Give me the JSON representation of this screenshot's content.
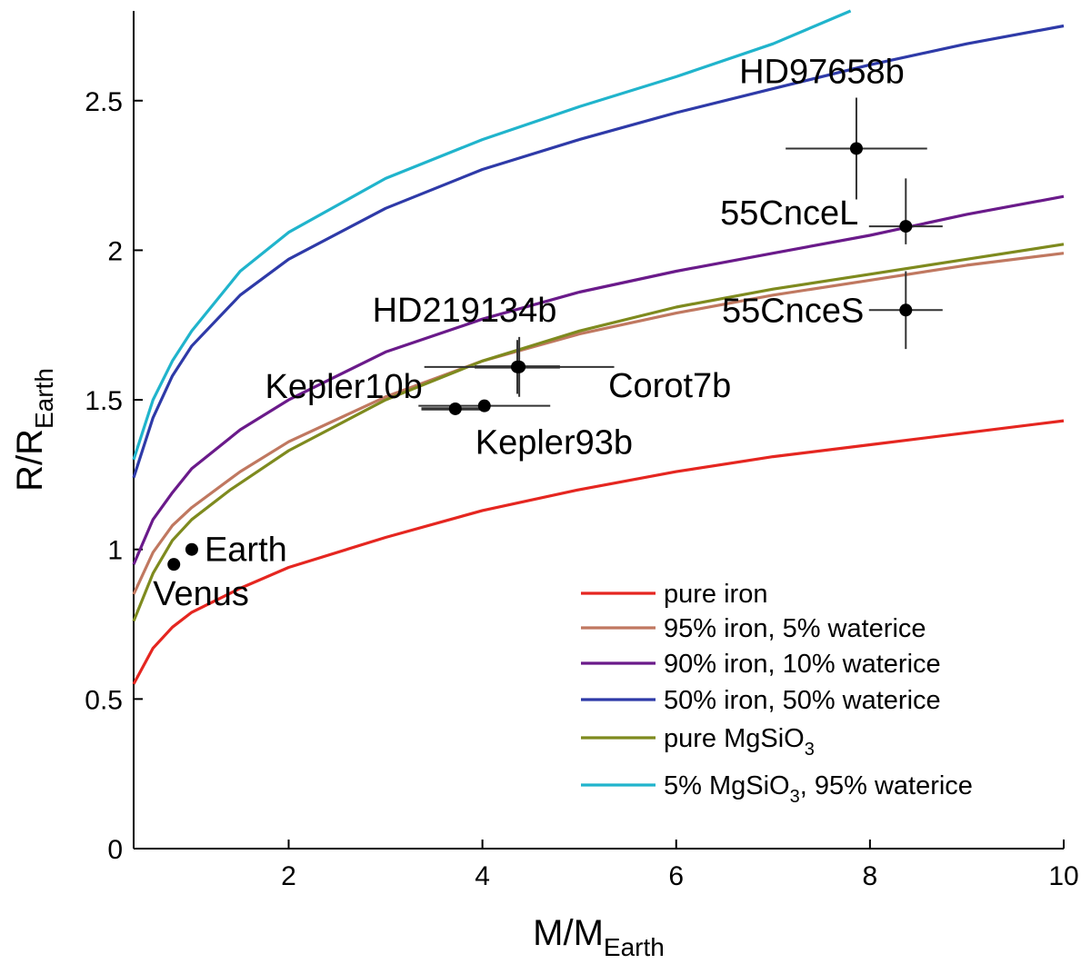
{
  "chart_data": {
    "type": "line",
    "title": "",
    "xlabel": {
      "main": "M/M",
      "sub": "Earth"
    },
    "ylabel": {
      "main": "R/R",
      "sub": "Earth"
    },
    "xlim": [
      0.4,
      10
    ],
    "ylim": [
      0,
      2.8
    ],
    "xticks": [
      2,
      4,
      6,
      8,
      10
    ],
    "yticks": [
      0,
      0.5,
      1,
      1.5,
      2,
      2.5
    ],
    "xtick_labels": [
      "2",
      "4",
      "6",
      "8",
      "10"
    ],
    "ytick_labels": [
      "0",
      "0.5",
      "1",
      "1.5",
      "2",
      "2.5"
    ],
    "grid": false,
    "legend_position": "bottom-right",
    "series": [
      {
        "name": "pure iron",
        "color": "#e52620",
        "x": [
          0.4,
          0.6,
          0.8,
          1.0,
          1.5,
          2.0,
          3.0,
          4.0,
          5.0,
          6.0,
          7.0,
          8.0,
          9.0,
          10.0
        ],
        "y": [
          0.55,
          0.67,
          0.74,
          0.79,
          0.87,
          0.94,
          1.04,
          1.13,
          1.2,
          1.26,
          1.31,
          1.35,
          1.39,
          1.43
        ]
      },
      {
        "name": "95% iron, 5% waterice",
        "color": "#c07860",
        "x": [
          0.4,
          0.6,
          0.8,
          1.0,
          1.5,
          2.0,
          3.0,
          4.0,
          5.0,
          6.0,
          7.0,
          8.0,
          9.0,
          10.0
        ],
        "y": [
          0.85,
          0.99,
          1.08,
          1.14,
          1.26,
          1.36,
          1.51,
          1.63,
          1.72,
          1.79,
          1.85,
          1.9,
          1.95,
          1.99
        ]
      },
      {
        "name": "90% iron, 10% waterice",
        "color": "#6a1a8a",
        "x": [
          0.4,
          0.6,
          0.8,
          1.0,
          1.5,
          2.0,
          3.0,
          4.0,
          5.0,
          6.0,
          7.0,
          8.0,
          9.0,
          10.0
        ],
        "y": [
          0.95,
          1.1,
          1.19,
          1.27,
          1.4,
          1.5,
          1.66,
          1.77,
          1.86,
          1.93,
          1.99,
          2.05,
          2.12,
          2.18
        ]
      },
      {
        "name": "50% iron, 50% waterice",
        "color": "#2e3aa8",
        "x": [
          0.4,
          0.6,
          0.8,
          1.0,
          1.5,
          2.0,
          3.0,
          4.0,
          5.0,
          6.0,
          7.0,
          8.0,
          9.0,
          10.0
        ],
        "y": [
          1.24,
          1.44,
          1.58,
          1.68,
          1.85,
          1.97,
          2.14,
          2.27,
          2.37,
          2.46,
          2.54,
          2.62,
          2.69,
          2.75
        ]
      },
      {
        "name": "pure MgSiO",
        "name_sub": "3",
        "color": "#7e8a1e",
        "x": [
          0.4,
          0.6,
          0.8,
          1.0,
          1.4,
          2.0,
          3.0,
          4.0,
          5.0,
          6.0,
          7.0,
          8.0,
          9.0,
          10.0
        ],
        "y": [
          0.76,
          0.92,
          1.03,
          1.1,
          1.2,
          1.33,
          1.5,
          1.63,
          1.73,
          1.81,
          1.87,
          1.92,
          1.97,
          2.02
        ]
      },
      {
        "name": "5% MgSiO",
        "name_sub": "3",
        "name_suffix": ", 95% waterice",
        "color": "#20b4cc",
        "x": [
          0.4,
          0.6,
          0.8,
          1.0,
          1.5,
          2.0,
          3.0,
          4.0,
          5.0,
          6.0,
          7.0,
          7.8
        ],
        "y": [
          1.3,
          1.5,
          1.63,
          1.73,
          1.93,
          2.06,
          2.24,
          2.37,
          2.48,
          2.58,
          2.69,
          2.8
        ]
      }
    ],
    "points": [
      {
        "name": "HD97658b",
        "x": 7.86,
        "y": 2.34,
        "xerr": 0.73,
        "yerr_low": 0.17,
        "yerr_high": 0.17,
        "label_pos": "above"
      },
      {
        "name": "55CnceL",
        "x": 8.37,
        "y": 2.08,
        "xerr": 0.38,
        "yerr_low": 0.06,
        "yerr_high": 0.16,
        "label_pos": "left-up"
      },
      {
        "name": "55CnceS",
        "x": 8.37,
        "y": 1.8,
        "xerr": 0.38,
        "yerr_low": 0.13,
        "yerr_high": 0.13,
        "label_pos": "left"
      },
      {
        "name": "HD219134b",
        "x": 4.36,
        "y": 1.61,
        "xerr": 0.44,
        "yerr_low": 0.09,
        "yerr_high": 0.09,
        "label_pos": "above"
      },
      {
        "name": "Corot7b",
        "x": 4.38,
        "y": 1.61,
        "xerr": 0.98,
        "yerr_low": 0.1,
        "yerr_high": 0.1,
        "label_pos": "right-below"
      },
      {
        "name": "Kepler10b",
        "x": 3.72,
        "y": 1.47,
        "xerr": 0.35,
        "yerr_low": 0.02,
        "yerr_high": 0.02,
        "label_pos": "left-up"
      },
      {
        "name": "Kepler93b",
        "x": 4.02,
        "y": 1.48,
        "xerr": 0.68,
        "yerr_low": 0.02,
        "yerr_high": 0.02,
        "label_pos": "below"
      },
      {
        "name": "Earth",
        "x": 1.0,
        "y": 1.0,
        "label_pos": "right"
      },
      {
        "name": "Venus",
        "x": 0.815,
        "y": 0.95,
        "label_pos": "below"
      }
    ]
  }
}
